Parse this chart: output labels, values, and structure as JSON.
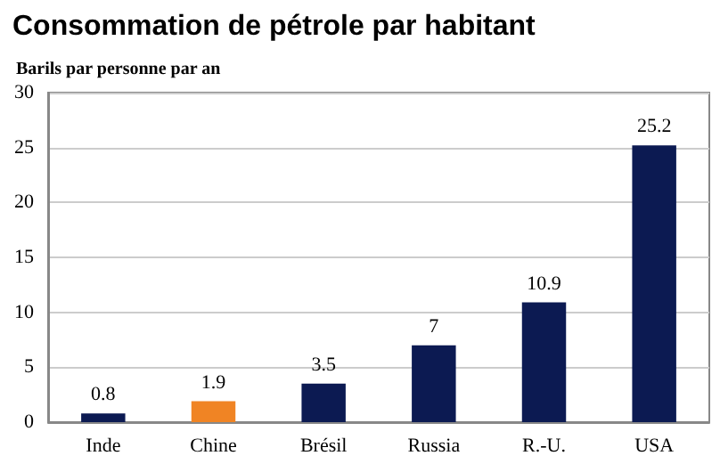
{
  "chart_data": {
    "type": "bar",
    "title": "Consommation de pétrole par habitant",
    "ylabel": "Barils par personne par an",
    "categories": [
      "Inde",
      "Chine",
      "Brésil",
      "Russia",
      "R.-U.",
      "USA"
    ],
    "values": [
      0.8,
      1.9,
      3.5,
      7,
      10.9,
      25.2
    ],
    "colors": [
      "#0c1a52",
      "#f08424",
      "#0c1a52",
      "#0c1a52",
      "#0c1a52",
      "#0c1a52"
    ],
    "ylim": [
      0,
      30
    ],
    "yticks": [
      0,
      5,
      10,
      15,
      20,
      25,
      30
    ],
    "grid": "y",
    "data_labels": true
  }
}
